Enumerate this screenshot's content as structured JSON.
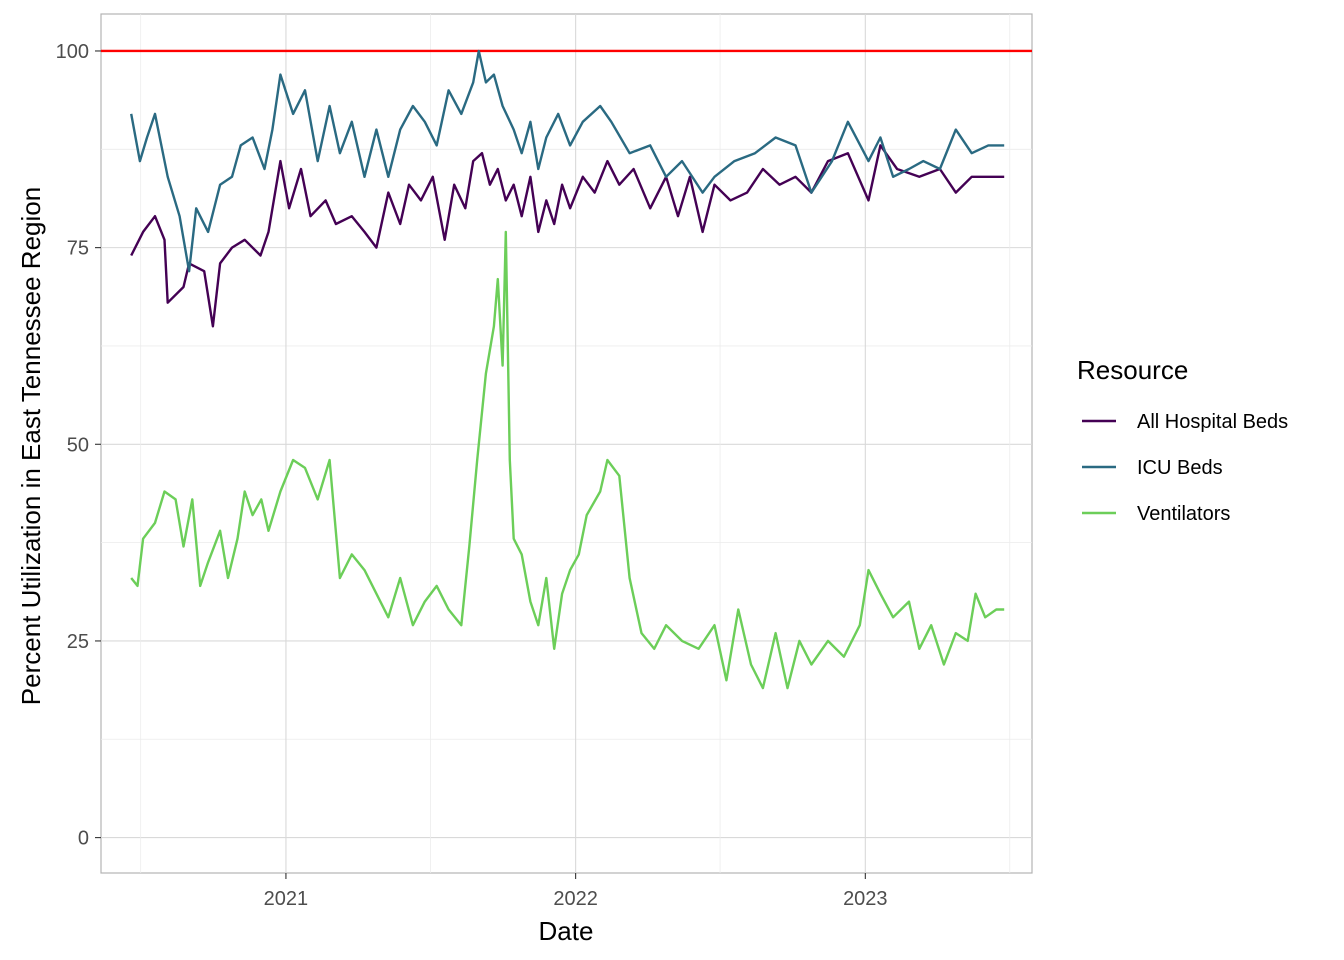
{
  "chart_data": {
    "type": "line",
    "xlabel": "Date",
    "ylabel": "Percent Utilization in East Tennessee Region",
    "x_ticks": [
      "2021",
      "2022",
      "2023"
    ],
    "x_tick_dates": [
      "2021-01-01",
      "2022-01-01",
      "2023-01-01"
    ],
    "xlim": [
      "2020-05-13",
      "2023-07-30"
    ],
    "y_ticks": [
      "0",
      "25",
      "50",
      "75",
      "100"
    ],
    "ylim": [
      -4.5,
      104.7
    ],
    "grid": true,
    "legend_position": "right",
    "legend_title": "Resource",
    "reference_line": {
      "y": 100,
      "color": "#ff0000"
    },
    "series": [
      {
        "name": "All Hospital Beds",
        "color": "#440154",
        "points": [
          [
            "2020-06-20",
            74
          ],
          [
            "2020-07-05",
            77
          ],
          [
            "2020-07-20",
            79
          ],
          [
            "2020-08-01",
            76
          ],
          [
            "2020-08-05",
            68
          ],
          [
            "2020-08-25",
            70
          ],
          [
            "2020-09-01",
            73
          ],
          [
            "2020-09-20",
            72
          ],
          [
            "2020-10-01",
            65
          ],
          [
            "2020-10-10",
            73
          ],
          [
            "2020-10-25",
            75
          ],
          [
            "2020-11-10",
            76
          ],
          [
            "2020-11-30",
            74
          ],
          [
            "2020-12-10",
            77
          ],
          [
            "2020-12-25",
            86
          ],
          [
            "2021-01-05",
            80
          ],
          [
            "2021-01-20",
            85
          ],
          [
            "2021-02-01",
            79
          ],
          [
            "2021-02-20",
            81
          ],
          [
            "2021-03-05",
            78
          ],
          [
            "2021-03-25",
            79
          ],
          [
            "2021-04-10",
            77
          ],
          [
            "2021-04-25",
            75
          ],
          [
            "2021-05-10",
            82
          ],
          [
            "2021-05-25",
            78
          ],
          [
            "2021-06-05",
            83
          ],
          [
            "2021-06-20",
            81
          ],
          [
            "2021-07-05",
            84
          ],
          [
            "2021-07-20",
            76
          ],
          [
            "2021-08-01",
            83
          ],
          [
            "2021-08-15",
            80
          ],
          [
            "2021-08-25",
            86
          ],
          [
            "2021-09-05",
            87
          ],
          [
            "2021-09-15",
            83
          ],
          [
            "2021-09-25",
            85
          ],
          [
            "2021-10-05",
            81
          ],
          [
            "2021-10-15",
            83
          ],
          [
            "2021-10-25",
            79
          ],
          [
            "2021-11-05",
            84
          ],
          [
            "2021-11-15",
            77
          ],
          [
            "2021-11-25",
            81
          ],
          [
            "2021-12-05",
            78
          ],
          [
            "2021-12-15",
            83
          ],
          [
            "2021-12-25",
            80
          ],
          [
            "2022-01-10",
            84
          ],
          [
            "2022-01-25",
            82
          ],
          [
            "2022-02-10",
            86
          ],
          [
            "2022-02-25",
            83
          ],
          [
            "2022-03-15",
            85
          ],
          [
            "2022-04-05",
            80
          ],
          [
            "2022-04-25",
            84
          ],
          [
            "2022-05-10",
            79
          ],
          [
            "2022-05-25",
            84
          ],
          [
            "2022-06-10",
            77
          ],
          [
            "2022-06-25",
            83
          ],
          [
            "2022-07-15",
            81
          ],
          [
            "2022-08-05",
            82
          ],
          [
            "2022-08-25",
            85
          ],
          [
            "2022-09-15",
            83
          ],
          [
            "2022-10-05",
            84
          ],
          [
            "2022-10-25",
            82
          ],
          [
            "2022-11-15",
            86
          ],
          [
            "2022-12-10",
            87
          ],
          [
            "2023-01-05",
            81
          ],
          [
            "2023-01-20",
            88
          ],
          [
            "2023-02-10",
            85
          ],
          [
            "2023-03-10",
            84
          ],
          [
            "2023-04-05",
            85
          ],
          [
            "2023-04-25",
            82
          ],
          [
            "2023-05-15",
            84
          ],
          [
            "2023-06-25",
            84
          ]
        ]
      },
      {
        "name": "ICU Beds",
        "color": "#2a6a82",
        "points": [
          [
            "2020-06-20",
            92
          ],
          [
            "2020-07-01",
            86
          ],
          [
            "2020-07-10",
            89
          ],
          [
            "2020-07-20",
            92
          ],
          [
            "2020-08-05",
            84
          ],
          [
            "2020-08-20",
            79
          ],
          [
            "2020-09-01",
            72
          ],
          [
            "2020-09-10",
            80
          ],
          [
            "2020-09-25",
            77
          ],
          [
            "2020-10-10",
            83
          ],
          [
            "2020-10-25",
            84
          ],
          [
            "2020-11-05",
            88
          ],
          [
            "2020-11-20",
            89
          ],
          [
            "2020-12-05",
            85
          ],
          [
            "2020-12-15",
            90
          ],
          [
            "2020-12-25",
            97
          ],
          [
            "2021-01-10",
            92
          ],
          [
            "2021-01-25",
            95
          ],
          [
            "2021-02-10",
            86
          ],
          [
            "2021-02-25",
            93
          ],
          [
            "2021-03-10",
            87
          ],
          [
            "2021-03-25",
            91
          ],
          [
            "2021-04-10",
            84
          ],
          [
            "2021-04-25",
            90
          ],
          [
            "2021-05-10",
            84
          ],
          [
            "2021-05-25",
            90
          ],
          [
            "2021-06-10",
            93
          ],
          [
            "2021-06-25",
            91
          ],
          [
            "2021-07-10",
            88
          ],
          [
            "2021-07-25",
            95
          ],
          [
            "2021-08-10",
            92
          ],
          [
            "2021-08-25",
            96
          ],
          [
            "2021-09-01",
            100
          ],
          [
            "2021-09-10",
            96
          ],
          [
            "2021-09-20",
            97
          ],
          [
            "2021-10-01",
            93
          ],
          [
            "2021-10-15",
            90
          ],
          [
            "2021-10-25",
            87
          ],
          [
            "2021-11-05",
            91
          ],
          [
            "2021-11-15",
            85
          ],
          [
            "2021-11-25",
            89
          ],
          [
            "2021-12-10",
            92
          ],
          [
            "2021-12-25",
            88
          ],
          [
            "2022-01-10",
            91
          ],
          [
            "2022-02-01",
            93
          ],
          [
            "2022-02-15",
            91
          ],
          [
            "2022-03-10",
            87
          ],
          [
            "2022-04-05",
            88
          ],
          [
            "2022-04-25",
            84
          ],
          [
            "2022-05-15",
            86
          ],
          [
            "2022-06-10",
            82
          ],
          [
            "2022-06-25",
            84
          ],
          [
            "2022-07-20",
            86
          ],
          [
            "2022-08-15",
            87
          ],
          [
            "2022-09-10",
            89
          ],
          [
            "2022-10-05",
            88
          ],
          [
            "2022-10-25",
            82
          ],
          [
            "2022-11-20",
            86
          ],
          [
            "2022-12-10",
            91
          ],
          [
            "2023-01-05",
            86
          ],
          [
            "2023-01-20",
            89
          ],
          [
            "2023-02-05",
            84
          ],
          [
            "2023-02-25",
            85
          ],
          [
            "2023-03-15",
            86
          ],
          [
            "2023-04-05",
            85
          ],
          [
            "2023-04-25",
            90
          ],
          [
            "2023-05-15",
            87
          ],
          [
            "2023-06-05",
            88
          ],
          [
            "2023-06-25",
            88
          ]
        ]
      },
      {
        "name": "Ventilators",
        "color": "#6cce59",
        "points": [
          [
            "2020-06-20",
            33
          ],
          [
            "2020-06-28",
            32
          ],
          [
            "2020-07-05",
            38
          ],
          [
            "2020-07-20",
            40
          ],
          [
            "2020-08-01",
            44
          ],
          [
            "2020-08-15",
            43
          ],
          [
            "2020-08-25",
            37
          ],
          [
            "2020-09-05",
            43
          ],
          [
            "2020-09-15",
            32
          ],
          [
            "2020-09-25",
            35
          ],
          [
            "2020-10-10",
            39
          ],
          [
            "2020-10-20",
            33
          ],
          [
            "2020-11-01",
            38
          ],
          [
            "2020-11-10",
            44
          ],
          [
            "2020-11-20",
            41
          ],
          [
            "2020-12-01",
            43
          ],
          [
            "2020-12-10",
            39
          ],
          [
            "2020-12-25",
            44
          ],
          [
            "2021-01-10",
            48
          ],
          [
            "2021-01-25",
            47
          ],
          [
            "2021-02-10",
            43
          ],
          [
            "2021-02-25",
            48
          ],
          [
            "2021-03-10",
            33
          ],
          [
            "2021-03-25",
            36
          ],
          [
            "2021-04-10",
            34
          ],
          [
            "2021-04-25",
            31
          ],
          [
            "2021-05-10",
            28
          ],
          [
            "2021-05-25",
            33
          ],
          [
            "2021-06-10",
            27
          ],
          [
            "2021-06-25",
            30
          ],
          [
            "2021-07-10",
            32
          ],
          [
            "2021-07-25",
            29
          ],
          [
            "2021-08-10",
            27
          ],
          [
            "2021-08-20",
            37
          ],
          [
            "2021-08-30",
            48
          ],
          [
            "2021-09-10",
            59
          ],
          [
            "2021-09-20",
            65
          ],
          [
            "2021-09-25",
            71
          ],
          [
            "2021-10-01",
            60
          ],
          [
            "2021-10-05",
            77
          ],
          [
            "2021-10-10",
            48
          ],
          [
            "2021-10-15",
            38
          ],
          [
            "2021-10-25",
            36
          ],
          [
            "2021-11-05",
            30
          ],
          [
            "2021-11-15",
            27
          ],
          [
            "2021-11-25",
            33
          ],
          [
            "2021-12-05",
            24
          ],
          [
            "2021-12-15",
            31
          ],
          [
            "2021-12-25",
            34
          ],
          [
            "2022-01-05",
            36
          ],
          [
            "2022-01-15",
            41
          ],
          [
            "2022-02-01",
            44
          ],
          [
            "2022-02-10",
            48
          ],
          [
            "2022-02-25",
            46
          ],
          [
            "2022-03-10",
            33
          ],
          [
            "2022-03-25",
            26
          ],
          [
            "2022-04-10",
            24
          ],
          [
            "2022-04-25",
            27
          ],
          [
            "2022-05-15",
            25
          ],
          [
            "2022-06-05",
            24
          ],
          [
            "2022-06-25",
            27
          ],
          [
            "2022-07-10",
            20
          ],
          [
            "2022-07-25",
            29
          ],
          [
            "2022-08-10",
            22
          ],
          [
            "2022-08-25",
            19
          ],
          [
            "2022-09-10",
            26
          ],
          [
            "2022-09-25",
            19
          ],
          [
            "2022-10-10",
            25
          ],
          [
            "2022-10-25",
            22
          ],
          [
            "2022-11-15",
            25
          ],
          [
            "2022-12-05",
            23
          ],
          [
            "2022-12-25",
            27
          ],
          [
            "2023-01-05",
            34
          ],
          [
            "2023-01-20",
            31
          ],
          [
            "2023-02-05",
            28
          ],
          [
            "2023-02-25",
            30
          ],
          [
            "2023-03-10",
            24
          ],
          [
            "2023-03-25",
            27
          ],
          [
            "2023-04-10",
            22
          ],
          [
            "2023-04-25",
            26
          ],
          [
            "2023-05-10",
            25
          ],
          [
            "2023-05-20",
            31
          ],
          [
            "2023-06-01",
            28
          ],
          [
            "2023-06-15",
            29
          ],
          [
            "2023-06-25",
            29
          ]
        ]
      }
    ]
  }
}
